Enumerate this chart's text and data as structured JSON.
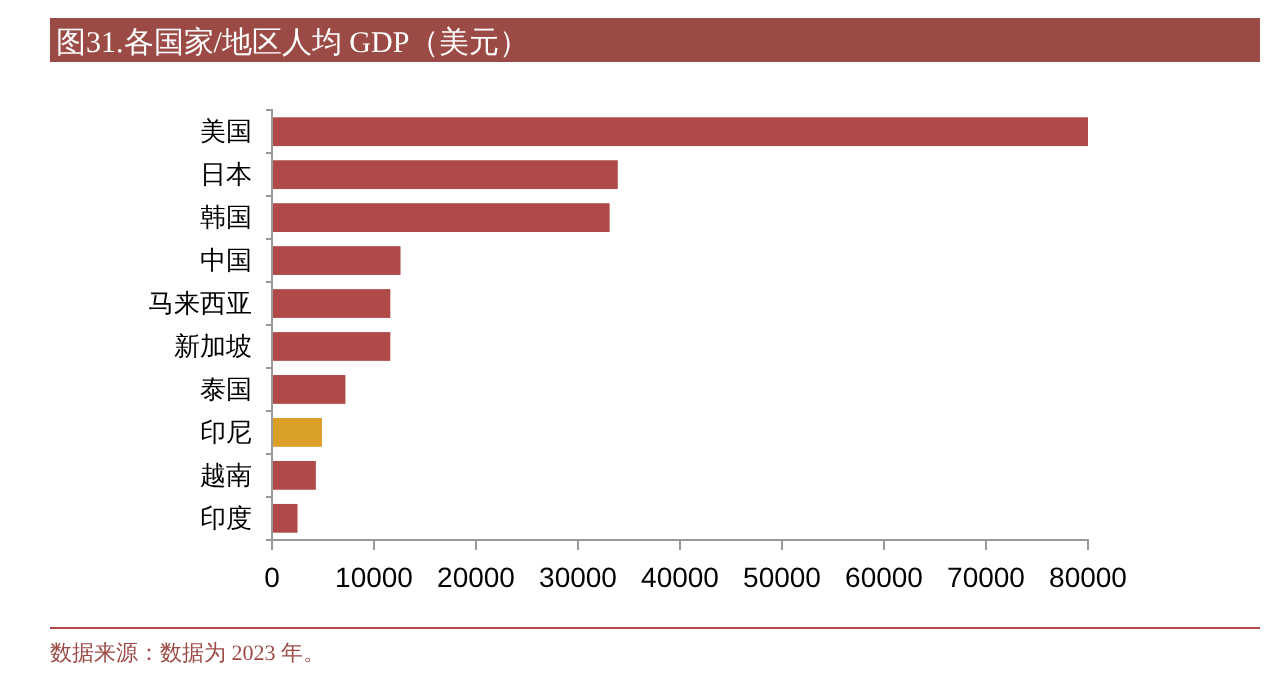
{
  "chart_data": {
    "type": "bar",
    "orientation": "horizontal",
    "title": "图31.各国家/地区人均 GDP（美元）",
    "categories": [
      "美国",
      "日本",
      "韩国",
      "中国",
      "马来西亚",
      "新加坡",
      "泰国",
      "印尼",
      "越南",
      "印度"
    ],
    "values": [
      80000,
      33900,
      33100,
      12600,
      11600,
      11600,
      7200,
      4900,
      4300,
      2500
    ],
    "colors": [
      "#b04a48",
      "#b04a48",
      "#b04a48",
      "#b04a48",
      "#b04a48",
      "#b04a48",
      "#b04a48",
      "#dba028",
      "#b04a48",
      "#b04a48"
    ],
    "xlim": [
      0,
      80000
    ],
    "xticks": [
      0,
      10000,
      20000,
      30000,
      40000,
      50000,
      60000,
      70000,
      80000
    ],
    "grid": false,
    "annotations": [
      "数据来源：数据为 2023 年。"
    ]
  }
}
